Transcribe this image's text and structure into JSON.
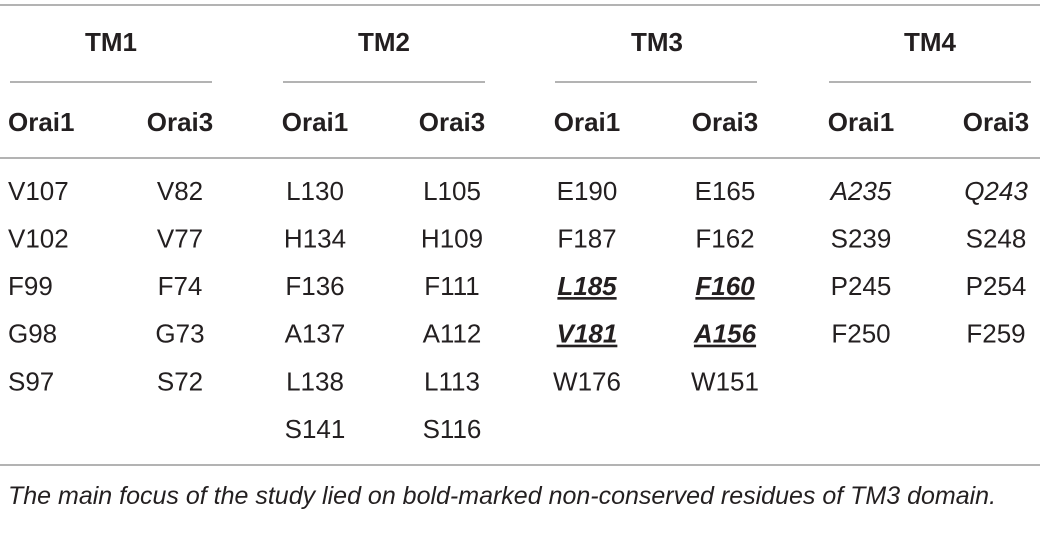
{
  "table": {
    "groups": [
      "TM1",
      "TM2",
      "TM3",
      "TM4"
    ],
    "subheaders": [
      "Orai1",
      "Orai3",
      "Orai1",
      "Orai3",
      "Orai1",
      "Orai3",
      "Orai1",
      "Orai3"
    ],
    "columns": [
      [
        "V107",
        "V102",
        "F99",
        "G98",
        "S97"
      ],
      [
        "V82",
        "V77",
        "F74",
        "G73",
        "S72"
      ],
      [
        "L130",
        "H134",
        "F136",
        "A137",
        "L138",
        "S141"
      ],
      [
        "L105",
        "H109",
        "F111",
        "A112",
        "L113",
        "S116"
      ],
      [
        "E190",
        "F187",
        "L185",
        "V181",
        "W176"
      ],
      [
        "E165",
        "F162",
        "F160",
        "A156",
        "W151"
      ],
      [
        "A235",
        "S239",
        "P245",
        "F250"
      ],
      [
        "Q243",
        "S248",
        "P254",
        "F259"
      ]
    ],
    "footnote": "The main focus of the study lied on bold-marked non-conserved residues of TM3 domain."
  }
}
